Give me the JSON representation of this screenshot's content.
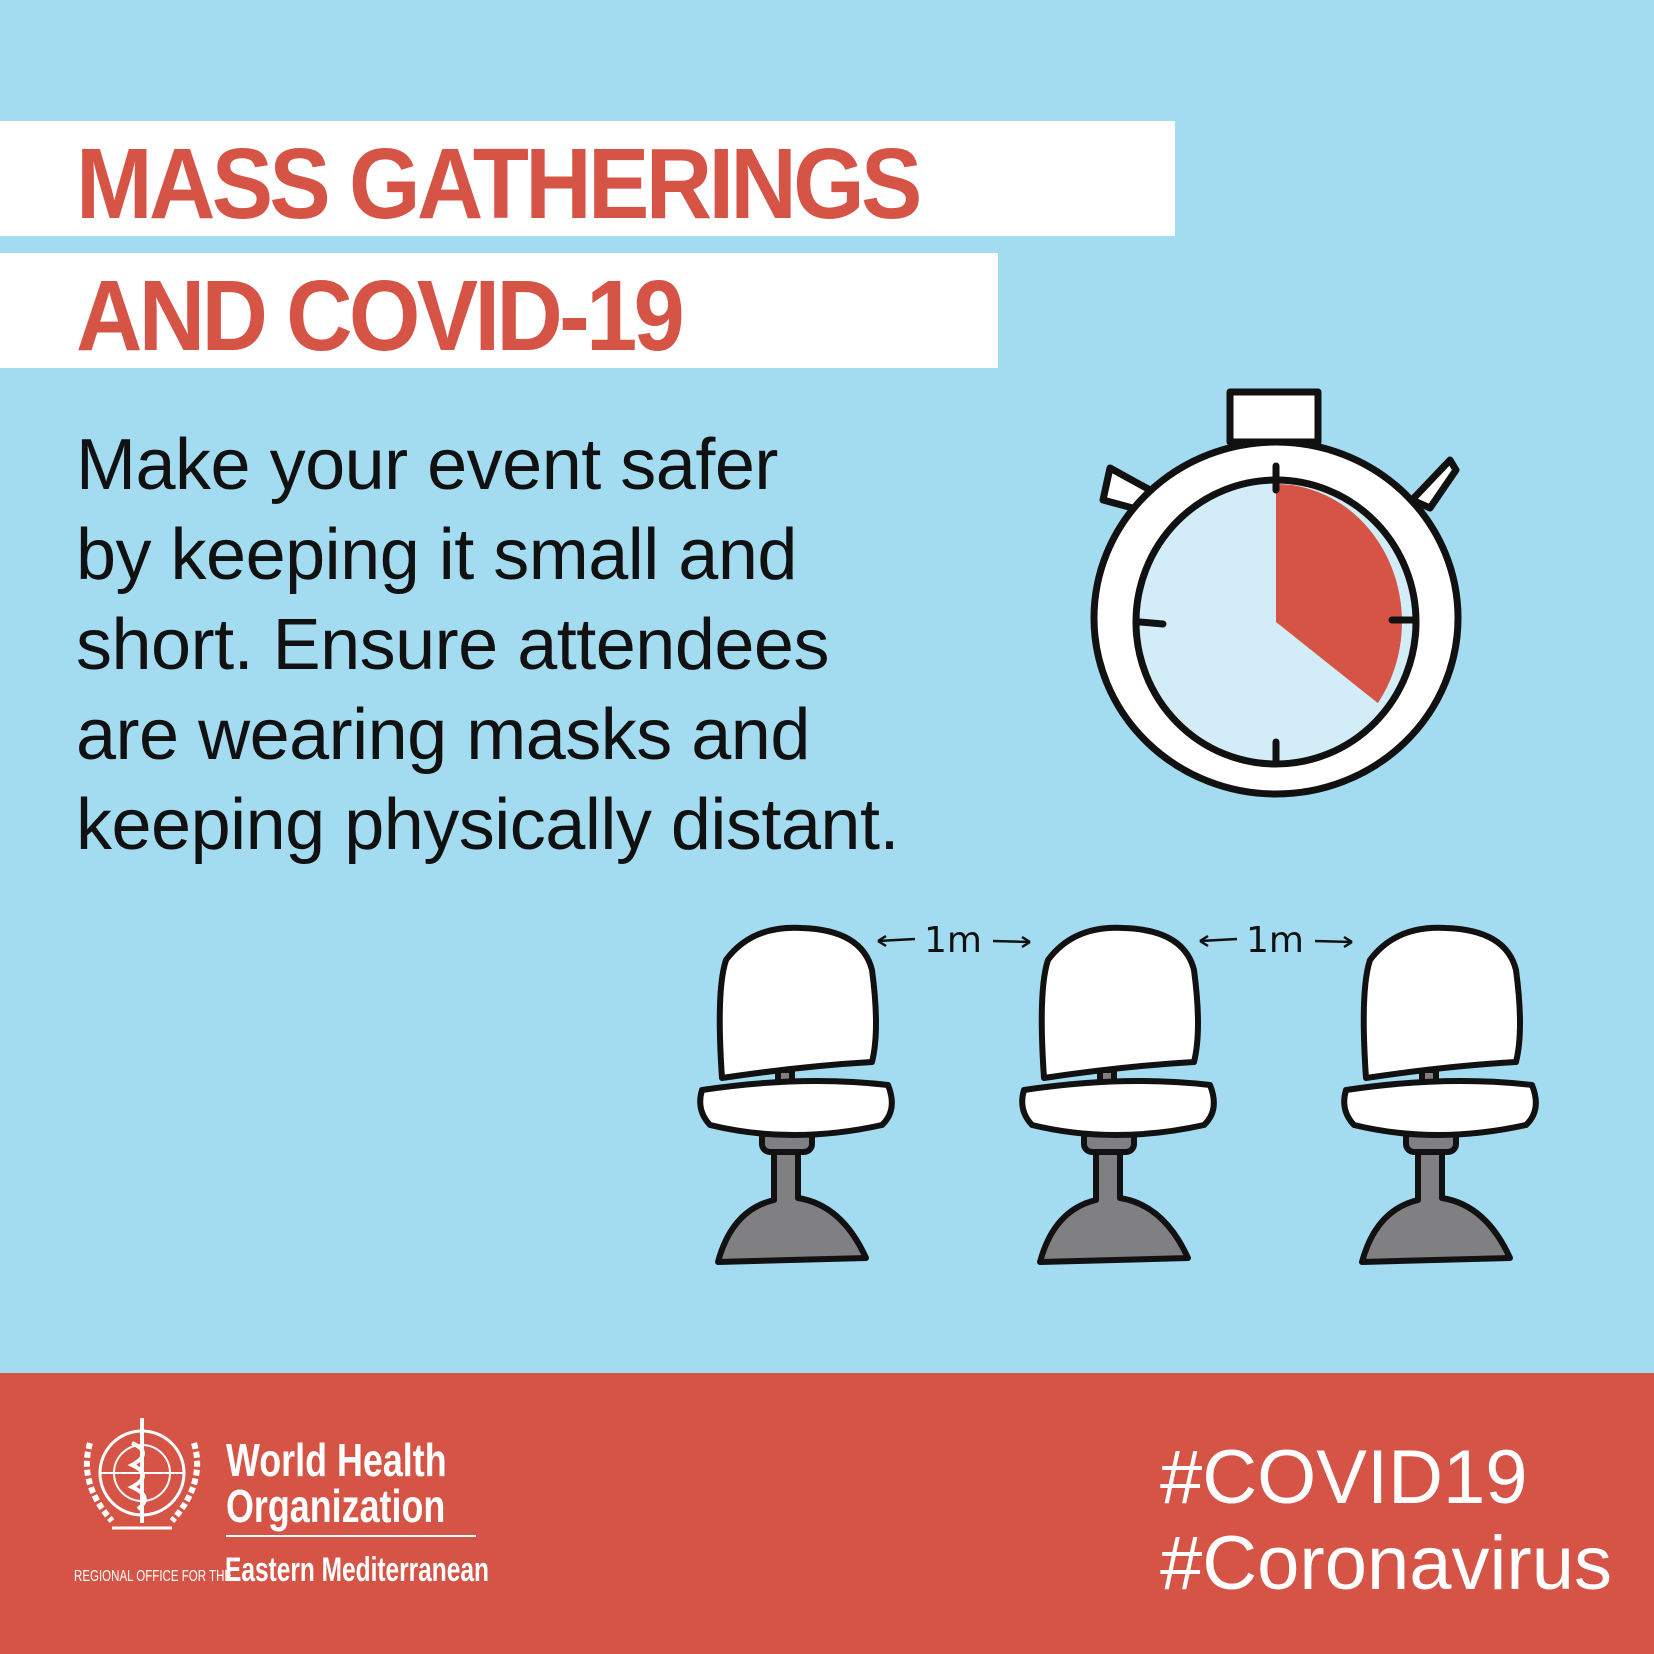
{
  "title": {
    "line1": "MASS GATHERINGS",
    "line2": "AND COVID-19"
  },
  "body": {
    "lines": [
      "Make your event safer",
      "by keeping it small and",
      "short. Ensure attendees",
      "are wearing masks and",
      "keeping physically distant."
    ]
  },
  "illustration": {
    "stopwatch_icon": "stopwatch-icon",
    "stopwatch_fill_fraction": 0.35,
    "distance_labels": [
      "1m",
      "1m"
    ],
    "chair_icon": "office-chair-icon"
  },
  "footer": {
    "org_line1": "World Health",
    "org_line2": "Organization",
    "region_prefix": "REGIONAL OFFICE FOR THE",
    "region_name": "Eastern Mediterranean",
    "hashtags": [
      "#COVID19",
      "#Coronavirus"
    ]
  },
  "colors": {
    "background": "#a3dcf1",
    "accent": "#d65446",
    "white": "#ffffff",
    "text": "#111111",
    "chair_base": "#808083"
  }
}
